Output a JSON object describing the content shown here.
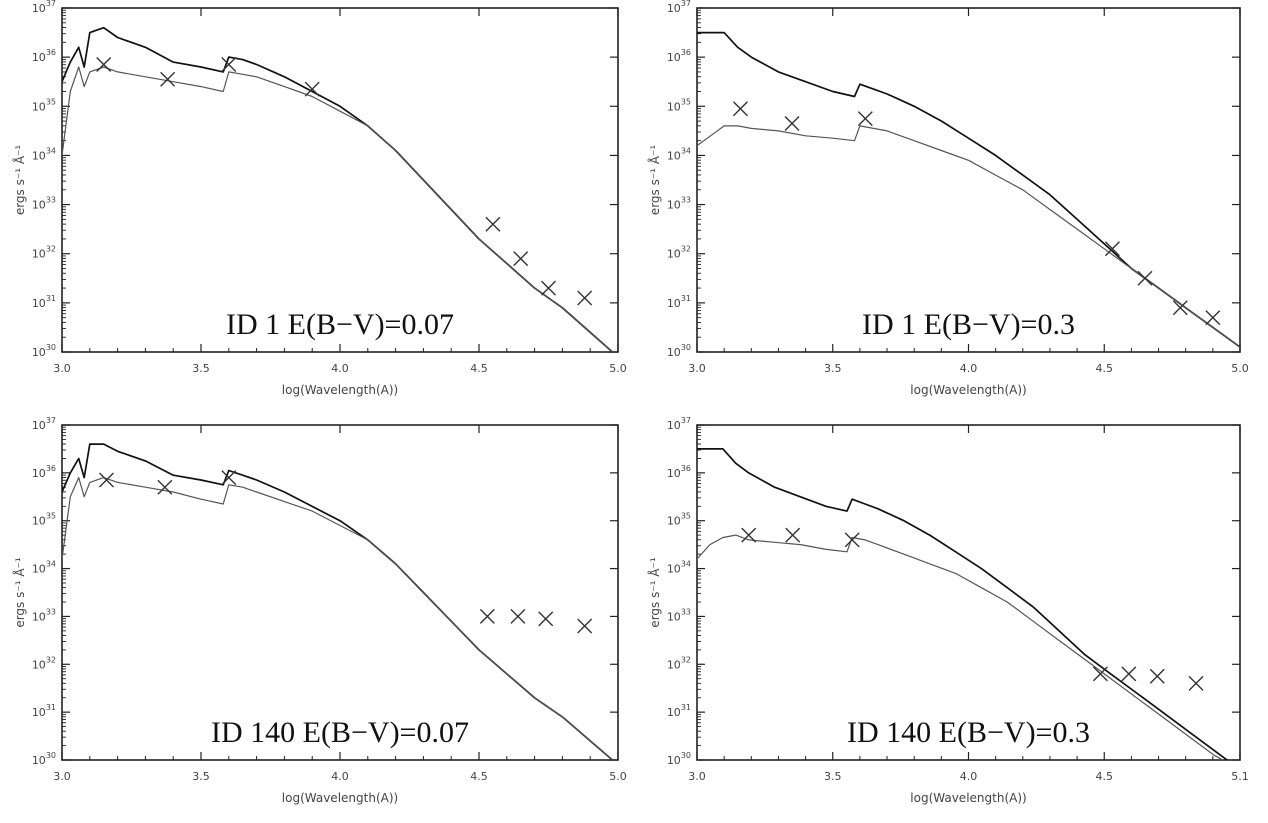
{
  "chart_data": [
    {
      "type": "line",
      "title": "ID 1 E(B−V)=0.07",
      "xlabel": "log(Wavelength(A))",
      "ylabel": "ergs s⁻¹ Å⁻¹",
      "xlim": [
        3.0,
        5.0
      ],
      "xticks": [
        "3.0",
        "3.5",
        "4.0",
        "4.5",
        "5.0"
      ],
      "ylog": true,
      "ylim": [
        30,
        37
      ],
      "grid": false,
      "series": [
        {
          "x": [
            3.0,
            3.03,
            3.06,
            3.08,
            3.1,
            3.15,
            3.2,
            3.3,
            3.4,
            3.5,
            3.58,
            3.6,
            3.65,
            3.7,
            3.8,
            3.9,
            4.0,
            4.1,
            4.2,
            4.3,
            4.4,
            4.5,
            4.6,
            4.7,
            4.8,
            4.9,
            5.0
          ],
          "y": [
            35.5,
            35.9,
            36.2,
            35.8,
            36.5,
            36.6,
            36.4,
            36.2,
            35.9,
            35.8,
            35.7,
            36.0,
            35.95,
            35.85,
            35.6,
            35.3,
            35.0,
            34.6,
            34.1,
            33.5,
            32.9,
            32.3,
            31.8,
            31.3,
            30.9,
            30.4,
            29.9
          ]
        },
        {
          "x": [
            3.0,
            3.03,
            3.06,
            3.08,
            3.1,
            3.15,
            3.2,
            3.3,
            3.4,
            3.5,
            3.58,
            3.6,
            3.65,
            3.7,
            3.8,
            3.9,
            4.0,
            4.1,
            4.2,
            4.3,
            4.4,
            4.5,
            4.6,
            4.7,
            4.8,
            4.9,
            5.0
          ],
          "y": [
            34.0,
            35.3,
            35.8,
            35.4,
            35.7,
            35.8,
            35.7,
            35.6,
            35.5,
            35.4,
            35.3,
            35.7,
            35.65,
            35.6,
            35.4,
            35.2,
            34.9,
            34.6,
            34.1,
            33.5,
            32.9,
            32.3,
            31.8,
            31.3,
            30.9,
            30.4,
            29.9
          ]
        }
      ],
      "markers": {
        "x": [
          3.15,
          3.38,
          3.6,
          3.9,
          4.55,
          4.65,
          4.75,
          4.88
        ],
        "y": [
          35.85,
          35.55,
          35.85,
          35.35,
          32.6,
          31.9,
          31.3,
          31.1
        ]
      }
    },
    {
      "type": "line",
      "title": "ID 1 E(B−V)=0.3",
      "xlabel": "log(Wavelength(A))",
      "ylabel": "ergs s⁻¹ Å⁻¹",
      "xlim": [
        3.0,
        5.0
      ],
      "xticks": [
        "3.0",
        "3.5",
        "4.0",
        "4.5",
        "5.0"
      ],
      "ylog": true,
      "ylim": [
        30,
        37
      ],
      "grid": false,
      "series": [
        {
          "x": [
            3.0,
            3.05,
            3.1,
            3.15,
            3.2,
            3.3,
            3.4,
            3.5,
            3.58,
            3.6,
            3.65,
            3.7,
            3.8,
            3.9,
            4.0,
            4.1,
            4.2,
            4.3,
            4.4,
            4.5,
            4.6,
            4.7,
            4.8,
            4.9,
            5.0
          ],
          "y": [
            36.5,
            36.5,
            36.5,
            36.2,
            36.0,
            35.7,
            35.5,
            35.3,
            35.2,
            35.45,
            35.35,
            35.25,
            35.0,
            34.7,
            34.35,
            34.0,
            33.6,
            33.2,
            32.7,
            32.2,
            31.7,
            31.3,
            30.9,
            30.5,
            30.1
          ]
        },
        {
          "x": [
            3.0,
            3.05,
            3.1,
            3.15,
            3.2,
            3.3,
            3.4,
            3.5,
            3.58,
            3.6,
            3.65,
            3.7,
            3.8,
            3.9,
            4.0,
            4.1,
            4.2,
            4.3,
            4.4,
            4.5,
            4.6,
            4.7,
            4.8,
            4.9,
            5.0
          ],
          "y": [
            34.2,
            34.4,
            34.6,
            34.6,
            34.55,
            34.5,
            34.4,
            34.35,
            34.3,
            34.6,
            34.55,
            34.5,
            34.3,
            34.1,
            33.9,
            33.6,
            33.3,
            32.9,
            32.5,
            32.1,
            31.7,
            31.3,
            30.9,
            30.5,
            30.1
          ]
        }
      ],
      "markers": {
        "x": [
          3.16,
          3.35,
          3.62,
          4.53,
          4.65,
          4.78,
          4.9
        ],
        "y": [
          34.95,
          34.65,
          34.75,
          32.1,
          31.5,
          30.9,
          30.7
        ]
      }
    },
    {
      "type": "line",
      "title": "ID 140 E(B−V)=0.07",
      "xlabel": "log(Wavelength(A))",
      "ylabel": "ergs s⁻¹ Å⁻¹",
      "xlim": [
        3.0,
        5.0
      ],
      "xticks": [
        "3.0",
        "3.5",
        "4.0",
        "4.5",
        "5.0"
      ],
      "ylog": true,
      "ylim": [
        30,
        37
      ],
      "grid": false,
      "series": [
        {
          "x": [
            3.0,
            3.03,
            3.06,
            3.08,
            3.1,
            3.15,
            3.2,
            3.3,
            3.4,
            3.5,
            3.58,
            3.6,
            3.65,
            3.7,
            3.8,
            3.9,
            4.0,
            4.1,
            4.2,
            4.3,
            4.4,
            4.5,
            4.6,
            4.7,
            4.8,
            4.9,
            5.0
          ],
          "y": [
            35.6,
            36.0,
            36.3,
            35.9,
            36.6,
            36.6,
            36.45,
            36.25,
            35.95,
            35.85,
            35.75,
            36.05,
            35.95,
            35.85,
            35.6,
            35.3,
            35.0,
            34.6,
            34.1,
            33.5,
            32.9,
            32.3,
            31.8,
            31.3,
            30.9,
            30.4,
            29.9
          ]
        },
        {
          "x": [
            3.0,
            3.03,
            3.06,
            3.08,
            3.1,
            3.15,
            3.2,
            3.3,
            3.4,
            3.5,
            3.58,
            3.6,
            3.65,
            3.7,
            3.8,
            3.9,
            4.0,
            4.1,
            4.2,
            4.3,
            4.4,
            4.5,
            4.6,
            4.7,
            4.8,
            4.9,
            5.0
          ],
          "y": [
            34.2,
            35.5,
            35.9,
            35.5,
            35.8,
            35.9,
            35.8,
            35.7,
            35.6,
            35.45,
            35.35,
            35.75,
            35.7,
            35.6,
            35.4,
            35.2,
            34.9,
            34.6,
            34.1,
            33.5,
            32.9,
            32.3,
            31.8,
            31.3,
            30.9,
            30.4,
            29.9
          ]
        }
      ],
      "markers": {
        "x": [
          3.16,
          3.37,
          3.6,
          4.53,
          4.64,
          4.74,
          4.88
        ],
        "y": [
          35.85,
          35.7,
          35.9,
          33.0,
          33.0,
          32.95,
          32.8
        ]
      }
    },
    {
      "type": "line",
      "title": "ID 140 E(B−V)=0.3",
      "xlabel": "log(Wavelength(A))",
      "ylabel": "ergs s⁻¹ Å⁻¹",
      "xlim": [
        3.0,
        5.1
      ],
      "xticks": [
        "3.0",
        "3.5",
        "4.0",
        "4.5",
        "5.1"
      ],
      "ylog": true,
      "ylim": [
        30,
        37
      ],
      "grid": false,
      "series": [
        {
          "x": [
            3.0,
            3.05,
            3.1,
            3.15,
            3.2,
            3.3,
            3.4,
            3.5,
            3.58,
            3.6,
            3.65,
            3.7,
            3.8,
            3.9,
            4.0,
            4.1,
            4.2,
            4.3,
            4.4,
            4.5,
            4.6,
            4.7,
            4.8,
            4.9,
            5.0,
            5.1
          ],
          "y": [
            36.5,
            36.5,
            36.5,
            36.2,
            36.0,
            35.7,
            35.5,
            35.3,
            35.2,
            35.45,
            35.35,
            35.25,
            35.0,
            34.7,
            34.35,
            34.0,
            33.6,
            33.2,
            32.7,
            32.2,
            31.8,
            31.4,
            31.0,
            30.6,
            30.2,
            29.8
          ]
        },
        {
          "x": [
            3.0,
            3.05,
            3.1,
            3.15,
            3.2,
            3.3,
            3.4,
            3.5,
            3.58,
            3.6,
            3.65,
            3.7,
            3.8,
            3.9,
            4.0,
            4.1,
            4.2,
            4.3,
            4.4,
            4.5,
            4.6,
            4.7,
            4.8,
            4.9,
            5.0,
            5.1
          ],
          "y": [
            34.2,
            34.5,
            34.65,
            34.7,
            34.6,
            34.55,
            34.5,
            34.4,
            34.35,
            34.65,
            34.6,
            34.5,
            34.3,
            34.1,
            33.9,
            33.6,
            33.3,
            32.9,
            32.5,
            32.1,
            31.7,
            31.3,
            30.9,
            30.5,
            30.1,
            29.8
          ]
        }
      ],
      "markers": {
        "x": [
          3.2,
          3.37,
          3.6,
          4.56,
          4.67,
          4.78,
          4.93
        ],
        "y": [
          34.7,
          34.7,
          34.6,
          31.8,
          31.8,
          31.75,
          31.6
        ]
      }
    }
  ]
}
